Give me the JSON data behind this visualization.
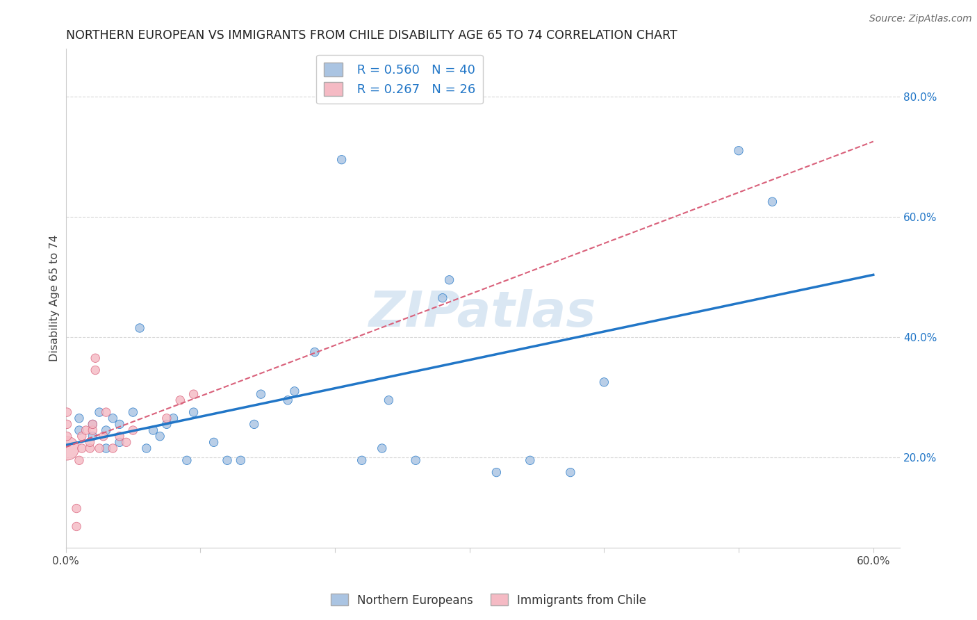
{
  "title": "NORTHERN EUROPEAN VS IMMIGRANTS FROM CHILE DISABILITY AGE 65 TO 74 CORRELATION CHART",
  "source": "Source: ZipAtlas.com",
  "ylabel": "Disability Age 65 to 74",
  "xlabel": "",
  "xlim": [
    0.0,
    0.62
  ],
  "ylim": [
    0.05,
    0.88
  ],
  "xticks": [
    0.0,
    0.1,
    0.2,
    0.3,
    0.4,
    0.5,
    0.6
  ],
  "xticklabels": [
    "0.0%",
    "",
    "",
    "",
    "",
    "",
    "60.0%"
  ],
  "yticks_right": [
    0.2,
    0.4,
    0.6,
    0.8
  ],
  "ytick_labels_right": [
    "20.0%",
    "40.0%",
    "60.0%",
    "80.0%"
  ],
  "blue_R": 0.56,
  "blue_N": 40,
  "pink_R": 0.267,
  "pink_N": 26,
  "blue_color": "#aac4e2",
  "blue_line_color": "#2176c7",
  "pink_color": "#f5bac4",
  "pink_line_color": "#d9607a",
  "background_color": "#ffffff",
  "grid_color": "#d8d8d8",
  "watermark": "ZIPatlas",
  "blue_scatter": [
    [
      0.01,
      0.245
    ],
    [
      0.01,
      0.265
    ],
    [
      0.02,
      0.235
    ],
    [
      0.02,
      0.255
    ],
    [
      0.025,
      0.275
    ],
    [
      0.03,
      0.215
    ],
    [
      0.03,
      0.245
    ],
    [
      0.035,
      0.265
    ],
    [
      0.04,
      0.225
    ],
    [
      0.04,
      0.255
    ],
    [
      0.05,
      0.275
    ],
    [
      0.055,
      0.415
    ],
    [
      0.06,
      0.215
    ],
    [
      0.065,
      0.245
    ],
    [
      0.07,
      0.235
    ],
    [
      0.075,
      0.255
    ],
    [
      0.08,
      0.265
    ],
    [
      0.09,
      0.195
    ],
    [
      0.095,
      0.275
    ],
    [
      0.11,
      0.225
    ],
    [
      0.12,
      0.195
    ],
    [
      0.13,
      0.195
    ],
    [
      0.14,
      0.255
    ],
    [
      0.145,
      0.305
    ],
    [
      0.165,
      0.295
    ],
    [
      0.17,
      0.31
    ],
    [
      0.185,
      0.375
    ],
    [
      0.205,
      0.695
    ],
    [
      0.22,
      0.195
    ],
    [
      0.235,
      0.215
    ],
    [
      0.24,
      0.295
    ],
    [
      0.26,
      0.195
    ],
    [
      0.28,
      0.465
    ],
    [
      0.285,
      0.495
    ],
    [
      0.32,
      0.175
    ],
    [
      0.345,
      0.195
    ],
    [
      0.375,
      0.175
    ],
    [
      0.4,
      0.325
    ],
    [
      0.5,
      0.71
    ],
    [
      0.525,
      0.625
    ]
  ],
  "pink_scatter": [
    [
      0.001,
      0.215
    ],
    [
      0.001,
      0.235
    ],
    [
      0.001,
      0.255
    ],
    [
      0.001,
      0.275
    ],
    [
      0.008,
      0.085
    ],
    [
      0.008,
      0.115
    ],
    [
      0.01,
      0.195
    ],
    [
      0.012,
      0.215
    ],
    [
      0.012,
      0.235
    ],
    [
      0.015,
      0.245
    ],
    [
      0.018,
      0.215
    ],
    [
      0.018,
      0.225
    ],
    [
      0.02,
      0.245
    ],
    [
      0.02,
      0.255
    ],
    [
      0.022,
      0.345
    ],
    [
      0.022,
      0.365
    ],
    [
      0.025,
      0.215
    ],
    [
      0.028,
      0.235
    ],
    [
      0.03,
      0.275
    ],
    [
      0.035,
      0.215
    ],
    [
      0.04,
      0.235
    ],
    [
      0.045,
      0.225
    ],
    [
      0.05,
      0.245
    ],
    [
      0.075,
      0.265
    ],
    [
      0.085,
      0.295
    ],
    [
      0.095,
      0.305
    ]
  ],
  "pink_large_idx": 0,
  "pink_large_size": 600,
  "default_size": 80
}
